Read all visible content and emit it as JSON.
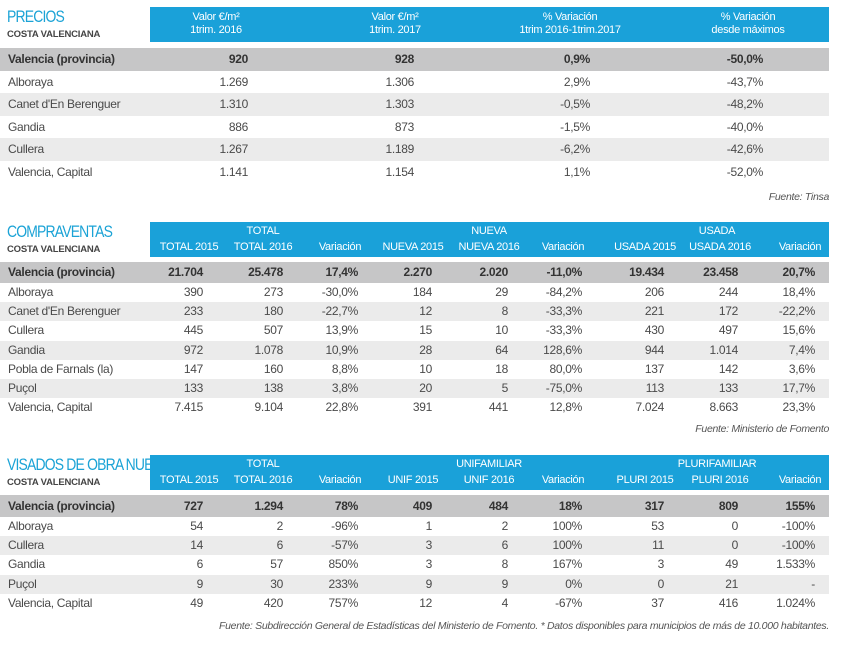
{
  "precios": {
    "title": "PRECIOS",
    "subtitle": "COSTA VALENCIANA",
    "headers": [
      [
        "Valor €/m²",
        "1trim. 2016"
      ],
      [
        "Valor €/m²",
        "1trim. 2017"
      ],
      [
        "% Variación",
        "1trim 2016-1trim.2017"
      ],
      [
        "% Variación",
        "desde máximos"
      ]
    ],
    "rows": [
      {
        "name": "Valencia (provincia)",
        "values": [
          "920",
          "928",
          "0,9%",
          "-50,0%"
        ]
      },
      {
        "name": "Alboraya",
        "values": [
          "1.269",
          "1.306",
          "2,9%",
          "-43,7%"
        ]
      },
      {
        "name": "Canet d'En Berenguer",
        "values": [
          "1.310",
          "1.303",
          "-0,5%",
          "-48,2%"
        ]
      },
      {
        "name": "Gandia",
        "values": [
          "886",
          "873",
          "-1,5%",
          "-40,0%"
        ]
      },
      {
        "name": "Cullera",
        "values": [
          "1.267",
          "1.189",
          "-6,2%",
          "-42,6%"
        ]
      },
      {
        "name": "Valencia, Capital",
        "values": [
          "1.141",
          "1.154",
          "1,1%",
          "-52,0%"
        ]
      }
    ],
    "source": "Fuente: Tinsa"
  },
  "compraventas": {
    "title": "COMPRAVENTAS",
    "subtitle": "COSTA VALENCIANA",
    "groups": [
      "TOTAL",
      "NUEVA",
      "USADA"
    ],
    "headers": [
      "TOTAL 2015",
      "TOTAL 2016",
      "Variación",
      "NUEVA 2015",
      "NUEVA 2016",
      "Variación",
      "USADA 2015",
      "USADA 2016",
      "Variación"
    ],
    "rows": [
      {
        "name": "Valencia (provincia)",
        "values": [
          "21.704",
          "25.478",
          "17,4%",
          "2.270",
          "2.020",
          "-11,0%",
          "19.434",
          "23.458",
          "20,7%"
        ]
      },
      {
        "name": "Alboraya",
        "values": [
          "390",
          "273",
          "-30,0%",
          "184",
          "29",
          "-84,2%",
          "206",
          "244",
          "18,4%"
        ]
      },
      {
        "name": "Canet d'En Berenguer",
        "values": [
          "233",
          "180",
          "-22,7%",
          "12",
          "8",
          "-33,3%",
          "221",
          "172",
          "-22,2%"
        ]
      },
      {
        "name": "Cullera",
        "values": [
          "445",
          "507",
          "13,9%",
          "15",
          "10",
          "-33,3%",
          "430",
          "497",
          "15,6%"
        ]
      },
      {
        "name": "Gandia",
        "values": [
          "972",
          "1.078",
          "10,9%",
          "28",
          "64",
          "128,6%",
          "944",
          "1.014",
          "7,4%"
        ]
      },
      {
        "name": "Pobla de Farnals (la)",
        "values": [
          "147",
          "160",
          "8,8%",
          "10",
          "18",
          "80,0%",
          "137",
          "142",
          "3,6%"
        ]
      },
      {
        "name": "Puçol",
        "values": [
          "133",
          "138",
          "3,8%",
          "20",
          "5",
          "-75,0%",
          "113",
          "133",
          "17,7%"
        ]
      },
      {
        "name": "Valencia, Capital",
        "values": [
          "7.415",
          "9.104",
          "22,8%",
          "391",
          "441",
          "12,8%",
          "7.024",
          "8.663",
          "23,3%"
        ]
      }
    ],
    "source": "Fuente: Ministerio de Fomento"
  },
  "visados": {
    "title": "VISADOS DE OBRA NUEVA",
    "subtitle": "COSTA VALENCIANA",
    "groups": [
      "TOTAL",
      "UNIFAMILIAR",
      "PLURIFAMILIAR"
    ],
    "headers": [
      "TOTAL 2015",
      "TOTAL 2016",
      "Variación",
      "UNIF 2015",
      "UNIF 2016",
      "Variación",
      "PLURI 2015",
      "PLURI 2016",
      "Variación"
    ],
    "rows": [
      {
        "name": "Valencia (provincia)",
        "values": [
          "727",
          "1.294",
          "78%",
          "409",
          "484",
          "18%",
          "317",
          "809",
          "155%"
        ]
      },
      {
        "name": "Alboraya",
        "values": [
          "54",
          "2",
          "-96%",
          "1",
          "2",
          "100%",
          "53",
          "0",
          "-100%"
        ]
      },
      {
        "name": "Cullera",
        "values": [
          "14",
          "6",
          "-57%",
          "3",
          "6",
          "100%",
          "11",
          "0",
          "-100%"
        ]
      },
      {
        "name": "Gandia",
        "values": [
          "6",
          "57",
          "850%",
          "3",
          "8",
          "167%",
          "3",
          "49",
          "1.533%"
        ]
      },
      {
        "name": "Puçol",
        "values": [
          "9",
          "30",
          "233%",
          "9",
          "9",
          "0%",
          "0",
          "21",
          "-"
        ]
      },
      {
        "name": "Valencia, Capital",
        "values": [
          "49",
          "420",
          "757%",
          "12",
          "4",
          "-67%",
          "37",
          "416",
          "1.024%"
        ]
      }
    ],
    "source": "Fuente: Subdirección General de Estadísticas del Ministerio de Fomento. * Datos disponibles para municipios de más de 10.000 habitantes."
  },
  "colors": {
    "accent": "#1aa1d9",
    "title": "#1ba3d6",
    "highlight_row": "#c6c6c7",
    "alt_row": "#ebebeb"
  }
}
